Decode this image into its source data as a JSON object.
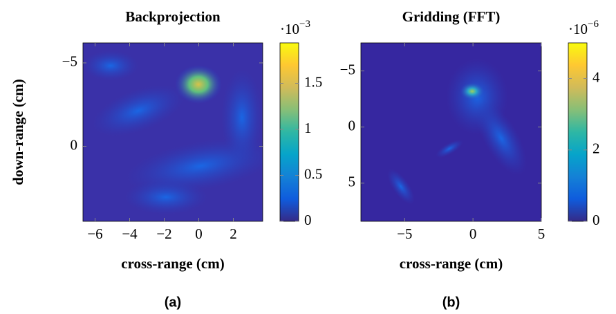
{
  "chart_data": [
    {
      "type": "heatmap",
      "title": "Backprojection",
      "xlabel": "cross-range (cm)",
      "ylabel": "down-range (cm)",
      "caption": "(a)",
      "xlim": [
        -6.7,
        3.7
      ],
      "xticks": [
        {
          "value": -6,
          "label": "−6"
        },
        {
          "value": -4,
          "label": "−4"
        },
        {
          "value": -2,
          "label": "−2"
        },
        0,
        2
      ],
      "ylim": [
        -6.2,
        4.5
      ],
      "yticks": [
        {
          "value": -5,
          "label": "−5"
        },
        0
      ],
      "y_reversed": true,
      "clim": [
        0,
        1.94
      ],
      "cticks": [
        0,
        0.5,
        1,
        1.5
      ],
      "colorbar_multiplier": {
        "base": "·10",
        "exponent": "−3"
      },
      "colormap": [
        "#352a87",
        "#0f5cdd",
        "#1481d6",
        "#06a4ca",
        "#2eb7a4",
        "#87bf77",
        "#d1bb59",
        "#fec832",
        "#f9fb0e"
      ]
    },
    {
      "type": "heatmap",
      "title": "Gridding (FFT)",
      "xlabel": "cross-range (cm)",
      "caption": "(b)",
      "xlim": [
        -8.2,
        5
      ],
      "xticks": [
        {
          "value": -5,
          "label": "−5"
        },
        0,
        5
      ],
      "ylim": [
        -7.5,
        8.4
      ],
      "yticks": [
        {
          "value": -5,
          "label": "−5"
        },
        0,
        5
      ],
      "y_reversed": true,
      "clim": [
        0,
        5
      ],
      "cticks": [
        0,
        2,
        4
      ],
      "colorbar_multiplier": {
        "base": "·10",
        "exponent": "−6"
      },
      "colormap": [
        "#352a87",
        "#0f5cdd",
        "#1481d6",
        "#06a4ca",
        "#2eb7a4",
        "#87bf77",
        "#d1bb59",
        "#fec832",
        "#f9fb0e"
      ]
    }
  ]
}
